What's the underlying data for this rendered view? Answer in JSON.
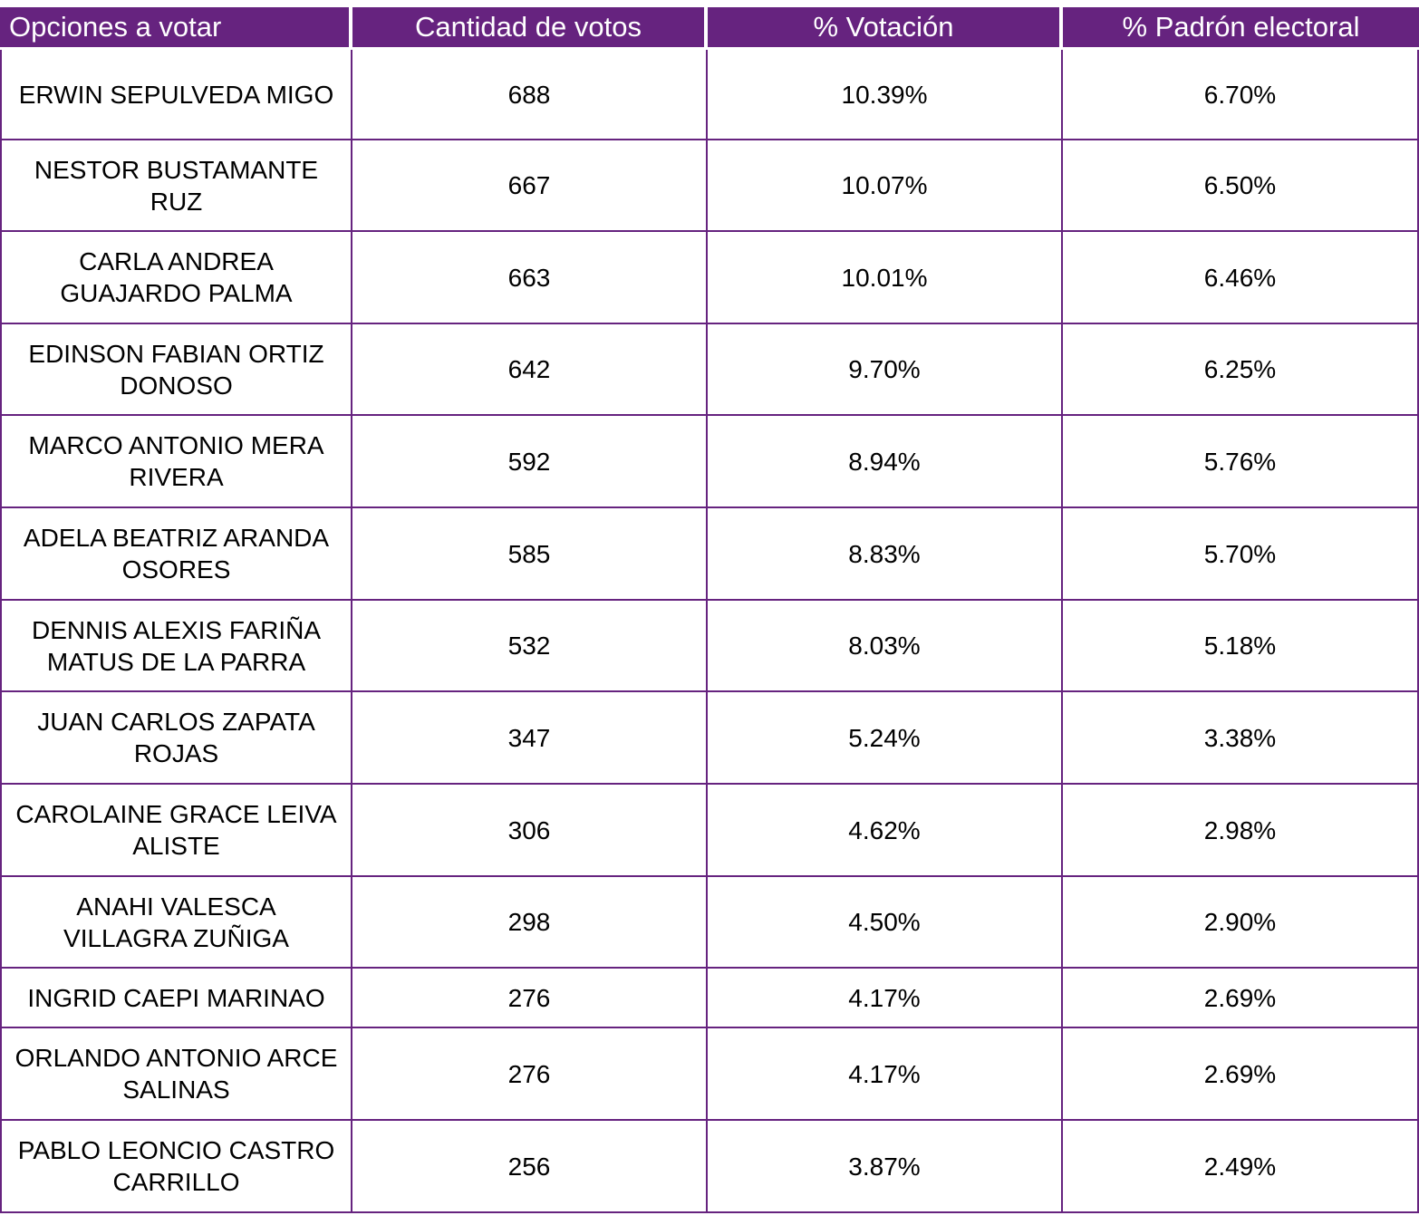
{
  "headers": [
    "Opciones a votar",
    "Cantidad de votos",
    "% Votación",
    "% Padrón electoral"
  ],
  "rows": [
    {
      "name": "ERWIN SEPULVEDA MIGO",
      "votes": "688",
      "pct_votes": "10.39%",
      "pct_padron": "6.70%"
    },
    {
      "name": "NESTOR BUSTAMANTE RUZ",
      "votes": "667",
      "pct_votes": "10.07%",
      "pct_padron": "6.50%"
    },
    {
      "name": "CARLA ANDREA GUAJARDO PALMA",
      "votes": "663",
      "pct_votes": "10.01%",
      "pct_padron": "6.46%"
    },
    {
      "name": "EDINSON FABIAN ORTIZ DONOSO",
      "votes": "642",
      "pct_votes": "9.70%",
      "pct_padron": "6.25%"
    },
    {
      "name": "MARCO ANTONIO MERA RIVERA",
      "votes": "592",
      "pct_votes": "8.94%",
      "pct_padron": "5.76%"
    },
    {
      "name": "ADELA BEATRIZ ARANDA OSORES",
      "votes": "585",
      "pct_votes": "8.83%",
      "pct_padron": "5.70%"
    },
    {
      "name": "DENNIS ALEXIS FARIÑA MATUS DE LA PARRA",
      "votes": "532",
      "pct_votes": "8.03%",
      "pct_padron": "5.18%"
    },
    {
      "name": "JUAN CARLOS ZAPATA ROJAS",
      "votes": "347",
      "pct_votes": "5.24%",
      "pct_padron": "3.38%"
    },
    {
      "name": "CAROLAINE GRACE LEIVA ALISTE",
      "votes": "306",
      "pct_votes": "4.62%",
      "pct_padron": "2.98%"
    },
    {
      "name": "ANAHI VALESCA VILLAGRA ZUÑIGA",
      "votes": "298",
      "pct_votes": "4.50%",
      "pct_padron": "2.90%"
    },
    {
      "name": "INGRID CAEPI MARINAO",
      "votes": "276",
      "pct_votes": "4.17%",
      "pct_padron": "2.69%"
    },
    {
      "name": "ORLANDO ANTONIO ARCE SALINAS",
      "votes": "276",
      "pct_votes": "4.17%",
      "pct_padron": "2.69%"
    },
    {
      "name": "PABLO LEONCIO CASTRO CARRILLO",
      "votes": "256",
      "pct_votes": "3.87%",
      "pct_padron": "2.49%"
    }
  ]
}
